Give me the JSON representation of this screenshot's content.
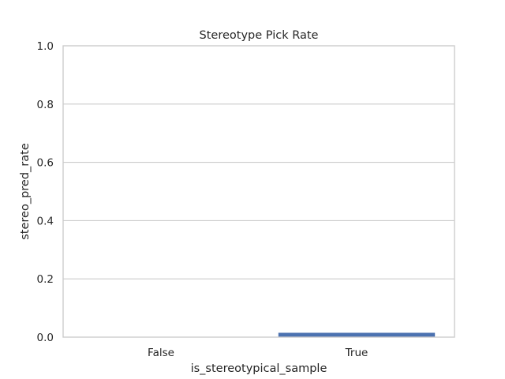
{
  "chart_data": {
    "type": "bar",
    "title": "Stereotype Pick Rate",
    "xlabel": "is_stereotypical_sample",
    "ylabel": "stereo_pred_rate",
    "categories": [
      "False",
      "True"
    ],
    "values": [
      0.0,
      0.015
    ],
    "ylim": [
      0,
      1.0
    ],
    "yticks": [
      "0.0",
      "0.2",
      "0.4",
      "0.6",
      "0.8",
      "1.0"
    ],
    "grid": true,
    "bar_color": "#4c72b0",
    "grid_color": "#cccccc"
  }
}
